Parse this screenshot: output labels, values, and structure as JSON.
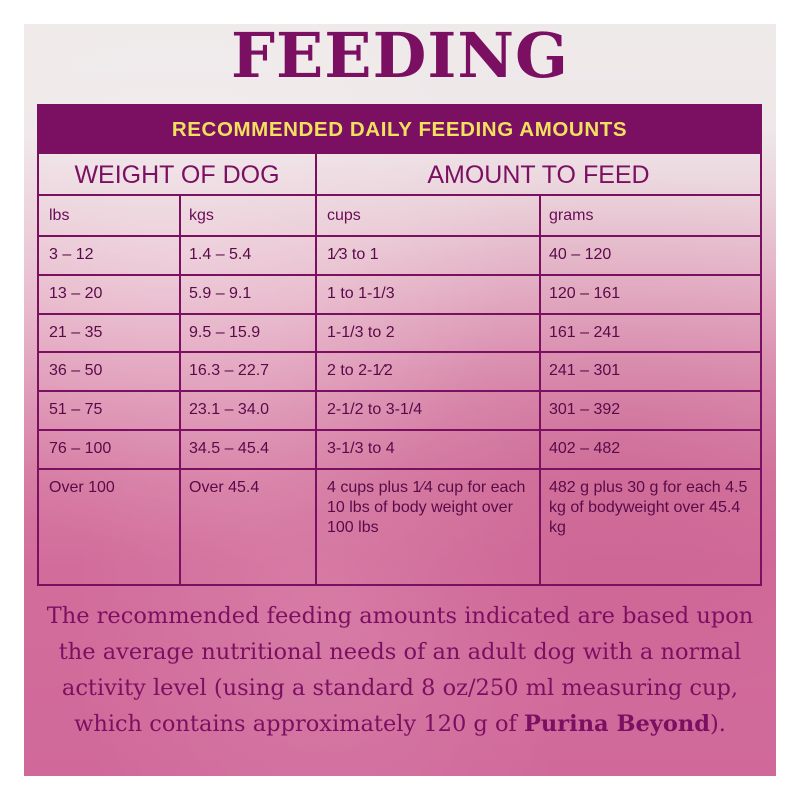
{
  "title": "FEEDING",
  "table": {
    "header": "RECOMMENDED DAILY FEEDING AMOUNTS",
    "group_left": "WEIGHT OF DOG",
    "group_right": "AMOUNT TO FEED",
    "units": [
      "lbs",
      "kgs",
      "cups",
      "grams"
    ],
    "rows": [
      [
        "3 – 12",
        "1.4 – 5.4",
        "1⁄3 to 1",
        "40 – 120"
      ],
      [
        "13 – 20",
        "5.9 – 9.1",
        "1 to 1-1/3",
        "120 – 161"
      ],
      [
        "21 – 35",
        "9.5 – 15.9",
        "1-1/3 to 2",
        "161 – 241"
      ],
      [
        "36 – 50",
        "16.3 – 22.7",
        "2 to 2-1⁄2",
        "241 – 301"
      ],
      [
        "51 – 75",
        "23.1 – 34.0",
        "2-1/2 to 3-1/4",
        "301 – 392"
      ],
      [
        "76 – 100",
        "34.5 – 45.4",
        "3-1/3 to 4",
        "402 – 482"
      ],
      [
        "Over 100",
        "Over 45.4",
        "4 cups plus 1⁄4 cup for each 10 lbs of body weight over 100 lbs",
        "482 g plus 30 g for each 4.5 kg of bodyweight over 45.4 kg"
      ]
    ]
  },
  "footer": {
    "text": "The recommended feeding amounts indicated are based upon the average nutritional needs of an adult dog with a normal activity level (using a standard 8 oz/250 ml measuring cup, which contains approximately 120 g of",
    "brand": "Purina Beyond",
    "end": ")."
  },
  "colors": {
    "primary": "#7b0f62",
    "header_text": "#f1e15f"
  }
}
